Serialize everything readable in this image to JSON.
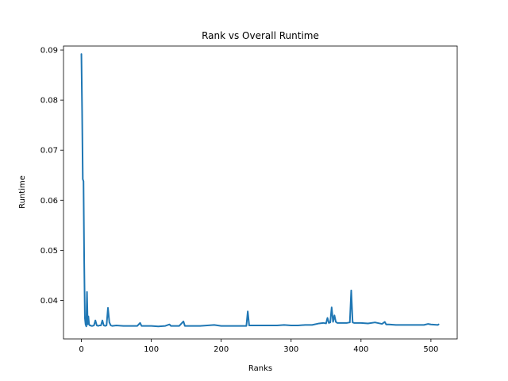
{
  "chart_data": {
    "type": "line",
    "title": "Rank vs Overall Runtime",
    "xlabel": "Ranks",
    "ylabel": "Runtime",
    "xlim": [
      -25.6,
      537.6
    ],
    "ylim": [
      0.0323,
      0.0908
    ],
    "xticks": [
      0,
      100,
      200,
      300,
      400,
      500
    ],
    "yticks": [
      0.04,
      0.05,
      0.06,
      0.07,
      0.08,
      0.09
    ],
    "ytick_labels": [
      "0.04",
      "0.05",
      "0.06",
      "0.07",
      "0.08",
      "0.09"
    ],
    "grid": false,
    "series": [
      {
        "color": "#1f77b4",
        "x": [
          0,
          1,
          2,
          3,
          4,
          5,
          6,
          7,
          8,
          9,
          10,
          11,
          12,
          13,
          14,
          16,
          18,
          20,
          22,
          24,
          26,
          28,
          30,
          32,
          34,
          36,
          38,
          40,
          42,
          44,
          50,
          60,
          70,
          80,
          84,
          86,
          90,
          100,
          110,
          120,
          126,
          128,
          130,
          140,
          146,
          148,
          150,
          160,
          170,
          180,
          190,
          200,
          210,
          220,
          230,
          236,
          238,
          240,
          250,
          260,
          270,
          280,
          290,
          300,
          310,
          320,
          330,
          340,
          346,
          350,
          352,
          354,
          356,
          358,
          360,
          362,
          364,
          366,
          370,
          380,
          384,
          386,
          388,
          390,
          400,
          410,
          420,
          430,
          434,
          436,
          440,
          450,
          460,
          470,
          480,
          490,
          496,
          500,
          510,
          511
        ],
        "values": [
          0.0892,
          0.078,
          0.0642,
          0.0638,
          0.0478,
          0.0365,
          0.0352,
          0.0348,
          0.0417,
          0.0352,
          0.0368,
          0.0352,
          0.035,
          0.035,
          0.0349,
          0.0349,
          0.035,
          0.036,
          0.035,
          0.0349,
          0.035,
          0.035,
          0.036,
          0.035,
          0.0349,
          0.035,
          0.0385,
          0.0356,
          0.035,
          0.0349,
          0.035,
          0.0349,
          0.0349,
          0.0349,
          0.0355,
          0.0349,
          0.0349,
          0.0349,
          0.0348,
          0.0349,
          0.0352,
          0.0349,
          0.0349,
          0.0349,
          0.0358,
          0.0349,
          0.0349,
          0.0349,
          0.0349,
          0.035,
          0.0351,
          0.0349,
          0.0349,
          0.0349,
          0.0349,
          0.0349,
          0.0378,
          0.035,
          0.035,
          0.035,
          0.035,
          0.035,
          0.0351,
          0.035,
          0.035,
          0.0351,
          0.0351,
          0.0354,
          0.0355,
          0.0354,
          0.0365,
          0.0355,
          0.0356,
          0.0386,
          0.0357,
          0.037,
          0.0357,
          0.0355,
          0.0355,
          0.0355,
          0.0356,
          0.042,
          0.0356,
          0.0355,
          0.0355,
          0.0354,
          0.0356,
          0.0353,
          0.0357,
          0.0352,
          0.0352,
          0.0351,
          0.0351,
          0.0351,
          0.0351,
          0.0351,
          0.0353,
          0.0352,
          0.0351,
          0.0352
        ]
      }
    ]
  }
}
